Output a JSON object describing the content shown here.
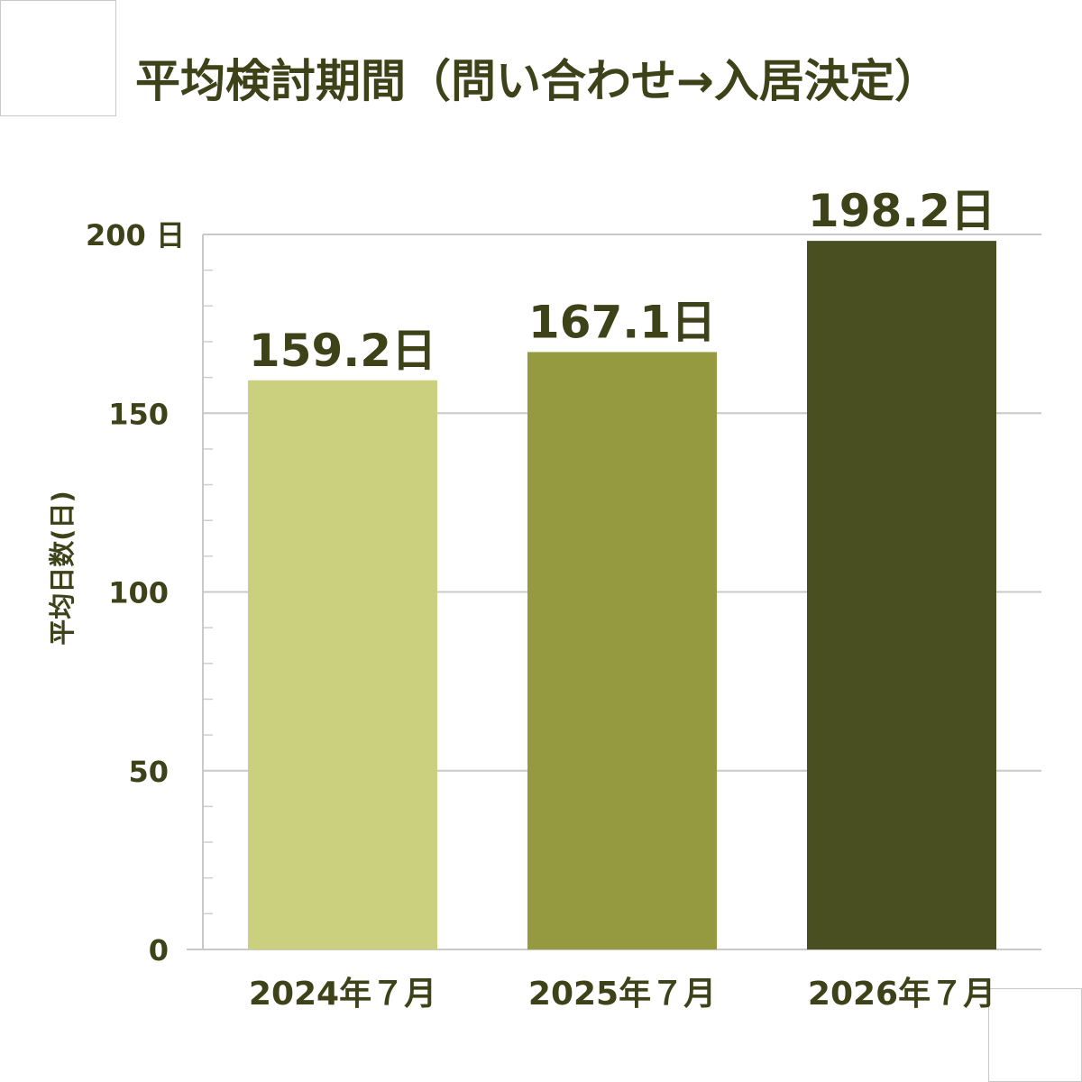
{
  "title": "平均検討期間（問い合わせ→入居決定）",
  "chart_data": {
    "type": "bar",
    "title": "平均検討期間（問い合わせ→入居決定）",
    "categories": [
      "2024年７月",
      "2025年７月",
      "2026年７月"
    ],
    "values": [
      159.2,
      167.1,
      198.2
    ],
    "data_labels": [
      "159.2日",
      "167.1日",
      "198.2日"
    ],
    "bar_colors": [
      "#cbd07e",
      "#95993f",
      "#4a4f22"
    ],
    "ylabel": "平均日数(日)",
    "ylim": [
      0,
      200
    ],
    "yticks": [
      0,
      50,
      100,
      150,
      200
    ],
    "ytick_labels": [
      "0",
      "50",
      "100",
      "150",
      "200 日"
    ],
    "grid": true,
    "text_color": "#3d4219"
  }
}
